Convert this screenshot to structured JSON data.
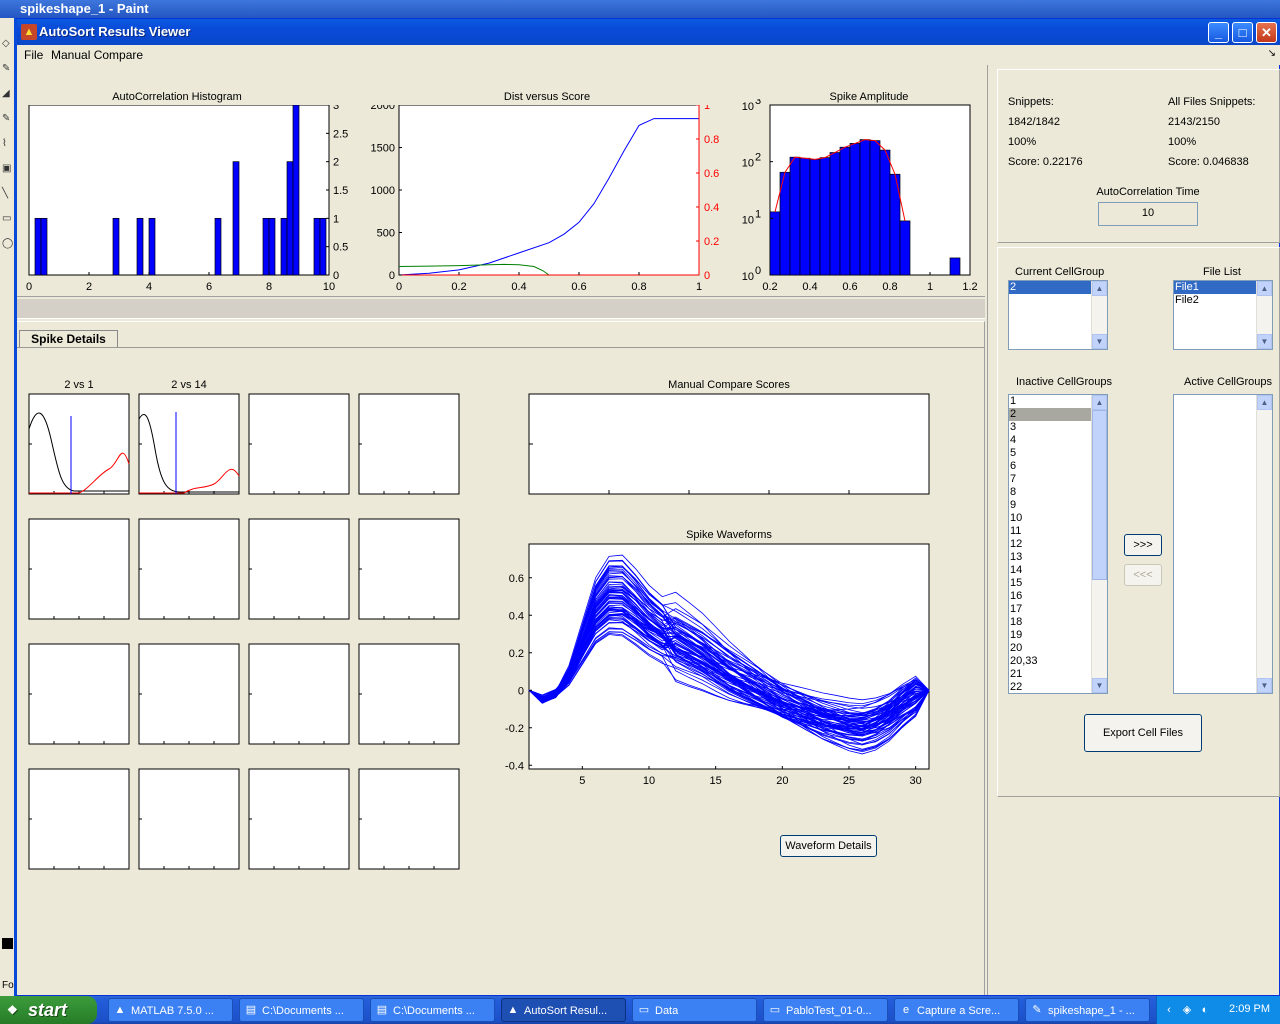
{
  "window": {
    "title": "AutoSort Results Viewer"
  },
  "background_window": {
    "title": "spikeshape_1 - Paint",
    "status": "Fo"
  },
  "menu": {
    "file": "File",
    "manual_compare": "Manual Compare"
  },
  "top_plots": {
    "autocorr": {
      "title": "AutoCorrelation Histogram",
      "x_ticks": [
        "0",
        "2",
        "4",
        "6",
        "8",
        "10"
      ],
      "y_ticks": [
        "0",
        "0.5",
        "1",
        "1.5",
        "2",
        "2.5",
        "3"
      ]
    },
    "dist_score": {
      "title": "Dist versus Score",
      "x_ticks": [
        "0",
        "0.2",
        "0.4",
        "0.6",
        "0.8",
        "1"
      ],
      "y_left_ticks": [
        "0",
        "500",
        "1000",
        "1500",
        "2000"
      ],
      "y_right_ticks": [
        "0",
        "0.2",
        "0.4",
        "0.6",
        "0.8",
        "1"
      ]
    },
    "amplitude": {
      "title": "Spike Amplitude",
      "x_ticks": [
        "0.2",
        "0.4",
        "0.6",
        "0.8",
        "1",
        "1.2"
      ],
      "y_ticks": [
        "10",
        "10",
        "10",
        "10"
      ],
      "y_exps": [
        "0",
        "1",
        "2",
        "3"
      ]
    }
  },
  "chart_data": [
    {
      "type": "bar",
      "title": "AutoCorrelation Histogram",
      "xlim": [
        0,
        10
      ],
      "ylim": [
        0,
        3
      ],
      "x": [
        0.3,
        0.5,
        2.9,
        3.7,
        4.1,
        6.3,
        6.9,
        7.9,
        8.1,
        8.5,
        8.7,
        8.9,
        9.6,
        9.8
      ],
      "values": [
        1,
        1,
        1,
        1,
        1,
        1,
        2,
        1,
        1,
        1,
        2,
        3,
        1,
        1
      ],
      "color": "#0000ff"
    },
    {
      "type": "line",
      "title": "Dist versus Score",
      "xlim": [
        0,
        1
      ],
      "ylim": [
        0,
        2000
      ],
      "y2lim": [
        0,
        1
      ],
      "series": [
        {
          "color": "#0000ff",
          "axis": "right",
          "x": [
            0,
            0.1,
            0.2,
            0.3,
            0.4,
            0.5,
            0.55,
            0.6,
            0.65,
            0.7,
            0.75,
            0.8,
            0.85,
            0.9,
            1.0
          ],
          "y": [
            0,
            0.01,
            0.03,
            0.07,
            0.13,
            0.19,
            0.24,
            0.31,
            0.42,
            0.57,
            0.73,
            0.88,
            0.92,
            0.92,
            0.92
          ]
        },
        {
          "color": "#008000",
          "axis": "left",
          "x": [
            0,
            0.1,
            0.2,
            0.3,
            0.35,
            0.4,
            0.45,
            0.48,
            0.5,
            0.6,
            0.8,
            1.0
          ],
          "y": [
            100,
            105,
            110,
            120,
            125,
            120,
            100,
            50,
            0,
            0,
            0,
            0
          ]
        },
        {
          "color": "#ff0000",
          "axis": "right",
          "x": [
            0,
            1
          ],
          "y": [
            0,
            0
          ]
        }
      ]
    },
    {
      "type": "bar",
      "title": "Spike Amplitude",
      "xlim": [
        0.2,
        1.2
      ],
      "ylim_log": [
        1,
        1000
      ],
      "x": [
        0.225,
        0.275,
        0.325,
        0.375,
        0.425,
        0.475,
        0.525,
        0.575,
        0.625,
        0.675,
        0.725,
        0.775,
        0.825,
        0.875,
        1.125
      ],
      "values": [
        13,
        65,
        120,
        115,
        110,
        118,
        145,
        180,
        210,
        245,
        235,
        160,
        60,
        9,
        2
      ],
      "color": "#0000ff"
    },
    {
      "type": "line",
      "title": "Spike Waveforms",
      "xlim": [
        1,
        31
      ],
      "ylim": [
        -0.42,
        0.78
      ],
      "x_ticks": [
        "5",
        "10",
        "15",
        "20",
        "25",
        "30"
      ],
      "y_ticks": [
        "-0.4",
        "-0.2",
        "0",
        "0.2",
        "0.4",
        "0.6"
      ],
      "mean": [
        0,
        -0.05,
        -0.02,
        0.08,
        0.25,
        0.42,
        0.5,
        0.5,
        0.44,
        0.37,
        0.32,
        0.28,
        0.24,
        0.2,
        0.15,
        0.1,
        0.06,
        0.02,
        -0.02,
        -0.06,
        -0.09,
        -0.12,
        -0.15,
        -0.17,
        -0.19,
        -0.2,
        -0.18,
        -0.14,
        -0.08,
        -0.03,
        0
      ],
      "color": "#0000ff"
    }
  ],
  "spike_details": {
    "tab_label": "Spike Details",
    "grid_titles": [
      "2 vs 1",
      "2 vs 14"
    ],
    "manual_compare_title": "Manual Compare Scores",
    "waveforms_title": "Spike Waveforms",
    "waveform_details_button": "Waveform Details"
  },
  "stats": {
    "snippets_label": "Snippets:",
    "snippets_value": "1842/1842",
    "snippets_pct": "100%",
    "snippets_score": "Score: 0.22176",
    "all_label": "All Files Snippets:",
    "all_value": "2143/2150",
    "all_pct": "100%",
    "all_score": "Score: 0.046838",
    "autocorr_time_label": "AutoCorrelation Time",
    "autocorr_time_value": "10"
  },
  "cells": {
    "current_label": "Current CellGroup",
    "current_items": [
      "2"
    ],
    "file_list_label": "File List",
    "file_items": [
      "File1",
      "File2"
    ],
    "inactive_label": "Inactive CellGroups",
    "inactive_items": [
      "1",
      "2",
      "3",
      "4",
      "5",
      "6",
      "7",
      "8",
      "9",
      "10",
      "11",
      "12",
      "13",
      "14",
      "15",
      "16",
      "17",
      "18",
      "19",
      "20",
      "20,33",
      "21",
      "22"
    ],
    "active_label": "Active CellGroups",
    "move_right": ">>>",
    "move_left": "<<<",
    "export_button": "Export Cell Files"
  },
  "taskbar": {
    "start": "start",
    "tasks": [
      "MATLAB 7.5.0 ...",
      "C:\\Documents ...",
      "C:\\Documents ...",
      "AutoSort Resul...",
      "Data",
      "PabloTest_01-0...",
      "Capture a Scre...",
      "spikeshape_1 - ..."
    ],
    "clock": "2:09 PM"
  }
}
